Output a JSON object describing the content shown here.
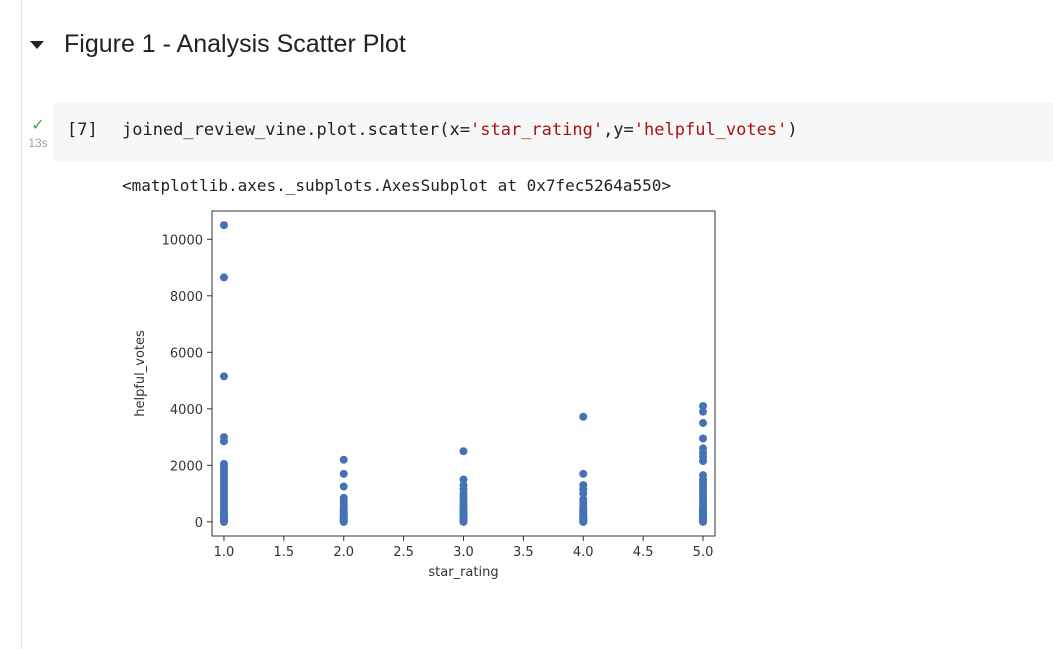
{
  "section": {
    "title": "Figure 1 - Analysis Scatter Plot",
    "caret_icon": "caret-down-icon"
  },
  "cell": {
    "status_icon": "check-icon",
    "execution_time": "13s",
    "execution_count": "[7]",
    "code": {
      "prefix": "joined_review_vine.plot.scatter(x=",
      "x_arg": "'star_rating'",
      "sep": ",y=",
      "y_arg": "'helpful_votes'",
      "suffix": ")"
    },
    "output": "<matplotlib.axes._subplots.AxesSubplot at 0x7fec5264a550>"
  },
  "colors": {
    "marker": "#4472b4",
    "check": "#34a853",
    "string": "#a31515"
  },
  "chart_data": {
    "type": "scatter",
    "title": "",
    "xlabel": "star_rating",
    "ylabel": "helpful_votes",
    "xlim": [
      0.9,
      5.1
    ],
    "ylim": [
      -500,
      11000
    ],
    "xticks": [
      "1.0",
      "1.5",
      "2.0",
      "2.5",
      "3.0",
      "3.5",
      "4.0",
      "4.5",
      "5.0"
    ],
    "yticks": [
      "0",
      "2000",
      "4000",
      "6000",
      "8000",
      "10000"
    ],
    "grid": false,
    "legend": "none",
    "series": [
      {
        "x": [
          1,
          1,
          1,
          1,
          1,
          1,
          1,
          1,
          1,
          1,
          1,
          1,
          1,
          1,
          1,
          1,
          1,
          1,
          1,
          1,
          1,
          1,
          1,
          1,
          1,
          1,
          1,
          1,
          1,
          1,
          2,
          2,
          2,
          2,
          2,
          2,
          2,
          2,
          2,
          2,
          2,
          2,
          2,
          2,
          2,
          2,
          2,
          2,
          2,
          2,
          3,
          3,
          3,
          3,
          3,
          3,
          3,
          3,
          3,
          3,
          3,
          3,
          3,
          3,
          3,
          3,
          3,
          3,
          3,
          3,
          3,
          3,
          4,
          4,
          4,
          4,
          4,
          4,
          4,
          4,
          4,
          4,
          4,
          4,
          4,
          4,
          4,
          4,
          4,
          4,
          4,
          4,
          4,
          4,
          5,
          5,
          5,
          5,
          5,
          5,
          5,
          5,
          5,
          5,
          5,
          5,
          5,
          5,
          5,
          5,
          5,
          5,
          5,
          5,
          5,
          5,
          5,
          5,
          5,
          5,
          5,
          5,
          5,
          5,
          5
        ],
        "y": [
          10500,
          8650,
          5150,
          3000,
          2850,
          2050,
          1950,
          1850,
          1750,
          1650,
          1550,
          1450,
          1350,
          1250,
          1150,
          1050,
          950,
          850,
          750,
          650,
          550,
          450,
          350,
          300,
          250,
          200,
          150,
          100,
          50,
          0,
          2200,
          1700,
          1250,
          850,
          750,
          650,
          550,
          450,
          400,
          350,
          300,
          250,
          200,
          150,
          120,
          100,
          80,
          50,
          20,
          0,
          2500,
          1500,
          1300,
          1150,
          1000,
          900,
          800,
          700,
          600,
          500,
          450,
          400,
          350,
          300,
          250,
          200,
          150,
          120,
          100,
          60,
          30,
          0,
          3720,
          1700,
          1300,
          1150,
          1000,
          800,
          700,
          600,
          500,
          450,
          400,
          350,
          300,
          250,
          200,
          150,
          120,
          100,
          80,
          50,
          20,
          0,
          4100,
          3900,
          3500,
          2950,
          2600,
          2450,
          2300,
          2150,
          1650,
          1500,
          1400,
          1300,
          1200,
          1100,
          1000,
          900,
          800,
          700,
          600,
          500,
          450,
          400,
          350,
          300,
          250,
          200,
          150,
          100,
          60,
          30,
          0
        ]
      }
    ]
  }
}
